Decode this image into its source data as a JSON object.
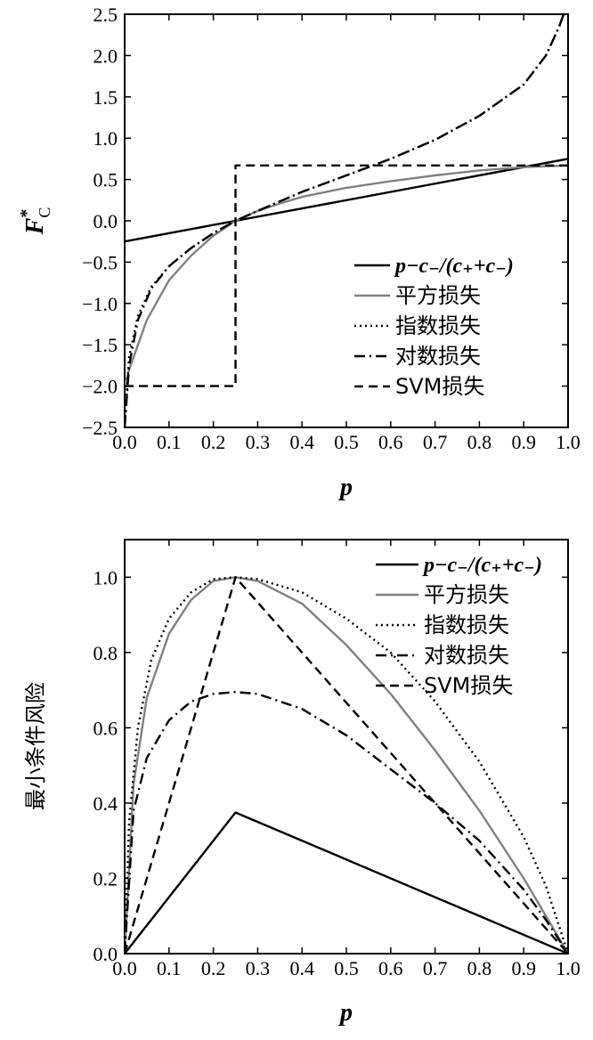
{
  "chart_data": [
    {
      "type": "line",
      "xlabel": "p",
      "ylabel": "F",
      "ylabel_sup": "*",
      "ylabel_sub": "C",
      "xlim": [
        0,
        1
      ],
      "ylim": [
        -2.5,
        2.5
      ],
      "xticks": [
        "0.0",
        "0.1",
        "0.2",
        "0.3",
        "0.4",
        "0.5",
        "0.6",
        "0.7",
        "0.8",
        "0.9",
        "1.0"
      ],
      "xtick_values": [
        0,
        0.1,
        0.2,
        0.3,
        0.4,
        0.5,
        0.6,
        0.7,
        0.8,
        0.9,
        1.0
      ],
      "yticks": [
        "2.5",
        "2.0",
        "1.5",
        "1.0",
        "0.5",
        "0.0",
        "−0.5",
        "−1.0",
        "−1.5",
        "−2.0",
        "−2.5"
      ],
      "ytick_values": [
        2.5,
        2.0,
        1.5,
        1.0,
        0.5,
        0.0,
        -0.5,
        -1.0,
        -1.5,
        -2.0,
        -2.5
      ],
      "legend_position": "bottom-right",
      "series": [
        {
          "name": "p−c₋/(c₊+c₋)",
          "style": "solid",
          "color": "#000000",
          "x": [
            0,
            1
          ],
          "y": [
            -0.25,
            0.75
          ]
        },
        {
          "name": "平方损失",
          "style": "solid",
          "color": "#808080",
          "x": [
            0,
            0.01,
            0.02,
            0.05,
            0.1,
            0.15,
            0.2,
            0.25,
            0.3,
            0.35,
            0.4,
            0.5,
            0.6,
            0.7,
            0.8,
            0.9,
            0.95,
            1.0
          ],
          "y": [
            -2.0,
            -1.8,
            -1.65,
            -1.2,
            -0.72,
            -0.42,
            -0.18,
            0.0,
            0.12,
            0.21,
            0.29,
            0.4,
            0.48,
            0.55,
            0.61,
            0.65,
            0.66,
            0.67
          ]
        },
        {
          "name": "指数损失",
          "style": "dotted",
          "color": "#000000",
          "x": [
            0,
            0.01,
            0.03,
            0.06,
            0.1,
            0.15,
            0.2,
            0.25,
            0.3,
            0.4,
            0.5,
            0.6,
            0.7,
            0.8,
            0.9,
            0.95,
            0.98,
            0.99
          ],
          "y": [
            -2.5,
            -1.65,
            -1.15,
            -0.8,
            -0.55,
            -0.33,
            -0.15,
            0.0,
            0.12,
            0.35,
            0.55,
            0.75,
            0.98,
            1.27,
            1.65,
            2.0,
            2.35,
            2.5
          ]
        },
        {
          "name": "对数损失",
          "style": "dashdot",
          "color": "#000000",
          "x": [
            0,
            0.01,
            0.03,
            0.06,
            0.1,
            0.15,
            0.2,
            0.25,
            0.3,
            0.4,
            0.5,
            0.6,
            0.7,
            0.8,
            0.9,
            0.95,
            0.98,
            0.99
          ],
          "y": [
            -2.5,
            -1.75,
            -1.2,
            -0.82,
            -0.55,
            -0.33,
            -0.15,
            0.0,
            0.12,
            0.35,
            0.55,
            0.75,
            0.98,
            1.27,
            1.65,
            2.0,
            2.35,
            2.5
          ]
        },
        {
          "name": "SVM损失",
          "style": "dashed",
          "color": "#000000",
          "x": [
            0,
            0.25,
            0.25,
            1.0
          ],
          "y": [
            -2.0,
            -2.0,
            0.67,
            0.67
          ]
        }
      ]
    },
    {
      "type": "line",
      "xlabel": "p",
      "ylabel": "最小条件风险",
      "xlim": [
        0,
        1
      ],
      "ylim": [
        0,
        1.1
      ],
      "xticks": [
        "0.0",
        "0.1",
        "0.2",
        "0.3",
        "0.4",
        "0.5",
        "0.6",
        "0.7",
        "0.8",
        "0.9",
        "1.0"
      ],
      "xtick_values": [
        0,
        0.1,
        0.2,
        0.3,
        0.4,
        0.5,
        0.6,
        0.7,
        0.8,
        0.9,
        1.0
      ],
      "yticks": [
        "1.0",
        "0.8",
        "0.6",
        "0.4",
        "0.2",
        "0.0"
      ],
      "ytick_values": [
        1.0,
        0.8,
        0.6,
        0.4,
        0.2,
        0.0
      ],
      "legend_position": "top-right",
      "series": [
        {
          "name": "p−c₋/(c₊+c₋)",
          "style": "solid",
          "color": "#000000",
          "x": [
            0,
            0.25,
            1.0
          ],
          "y": [
            0,
            0.375,
            0
          ]
        },
        {
          "name": "平方损失",
          "style": "solid",
          "color": "#808080",
          "x": [
            0,
            0.02,
            0.05,
            0.1,
            0.15,
            0.2,
            0.25,
            0.3,
            0.4,
            0.5,
            0.6,
            0.7,
            0.8,
            0.9,
            0.95,
            1.0
          ],
          "y": [
            0,
            0.45,
            0.68,
            0.85,
            0.94,
            0.99,
            1.0,
            0.99,
            0.93,
            0.82,
            0.69,
            0.54,
            0.38,
            0.2,
            0.1,
            0
          ]
        },
        {
          "name": "指数损失",
          "style": "dotted",
          "color": "#000000",
          "x": [
            0,
            0.01,
            0.03,
            0.06,
            0.1,
            0.15,
            0.2,
            0.25,
            0.3,
            0.4,
            0.5,
            0.6,
            0.7,
            0.8,
            0.9,
            0.95,
            1.0
          ],
          "y": [
            0,
            0.35,
            0.6,
            0.78,
            0.89,
            0.96,
            0.995,
            1.0,
            0.995,
            0.96,
            0.89,
            0.8,
            0.67,
            0.51,
            0.31,
            0.18,
            0
          ]
        },
        {
          "name": "对数损失",
          "style": "dashdot",
          "color": "#000000",
          "x": [
            0,
            0.02,
            0.05,
            0.1,
            0.15,
            0.2,
            0.25,
            0.3,
            0.4,
            0.5,
            0.6,
            0.7,
            0.8,
            0.9,
            0.95,
            1.0
          ],
          "y": [
            0,
            0.38,
            0.52,
            0.62,
            0.67,
            0.69,
            0.695,
            0.69,
            0.65,
            0.58,
            0.49,
            0.4,
            0.3,
            0.17,
            0.09,
            0
          ]
        },
        {
          "name": "SVM损失",
          "style": "dashed",
          "color": "#000000",
          "x": [
            0,
            0.25,
            1.0
          ],
          "y": [
            0,
            1.0,
            0
          ]
        }
      ]
    }
  ]
}
